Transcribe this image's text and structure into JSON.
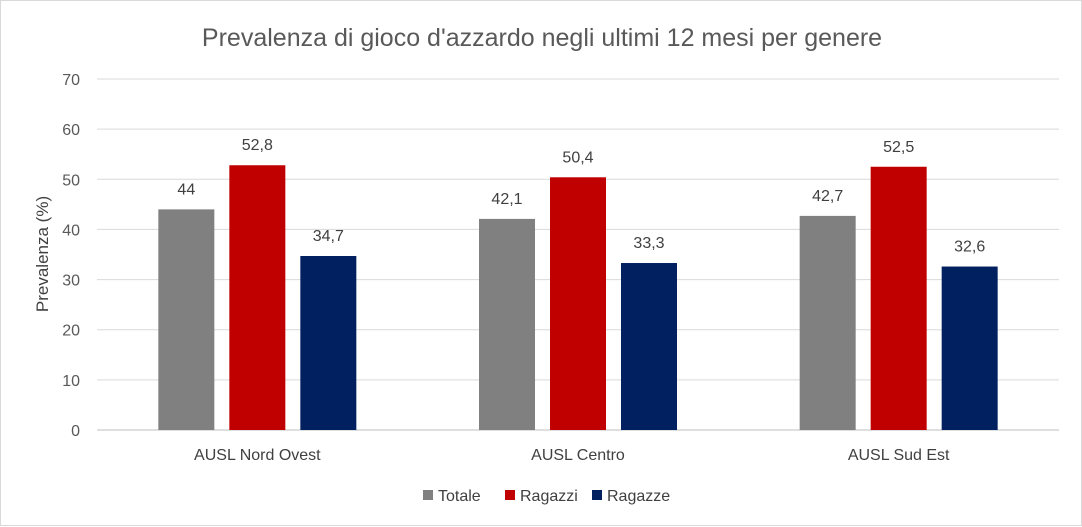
{
  "chart_data": {
    "type": "bar",
    "title": "Prevalenza di gioco d'azzardo negli ultimi 12 mesi per genere",
    "ylabel": "Prevalenza (%)",
    "xlabel": "",
    "ylim": [
      0,
      70
    ],
    "yticks": [
      0,
      10,
      20,
      30,
      40,
      50,
      60,
      70
    ],
    "grid": true,
    "legend_position": "bottom",
    "categories": [
      "AUSL Nord Ovest",
      "AUSL Centro",
      "AUSL Sud Est"
    ],
    "series": [
      {
        "name": "Totale",
        "color": "#808080",
        "values": [
          44,
          42.1,
          42.7
        ],
        "labels": [
          "44",
          "42,1",
          "42,7"
        ]
      },
      {
        "name": "Ragazzi",
        "color": "#c00000",
        "values": [
          52.8,
          50.4,
          52.5
        ],
        "labels": [
          "52,8",
          "50,4",
          "52,5"
        ]
      },
      {
        "name": "Ragazze",
        "color": "#002060",
        "values": [
          34.7,
          33.3,
          32.6
        ],
        "labels": [
          "34,7",
          "33,3",
          "32,6"
        ]
      }
    ]
  }
}
